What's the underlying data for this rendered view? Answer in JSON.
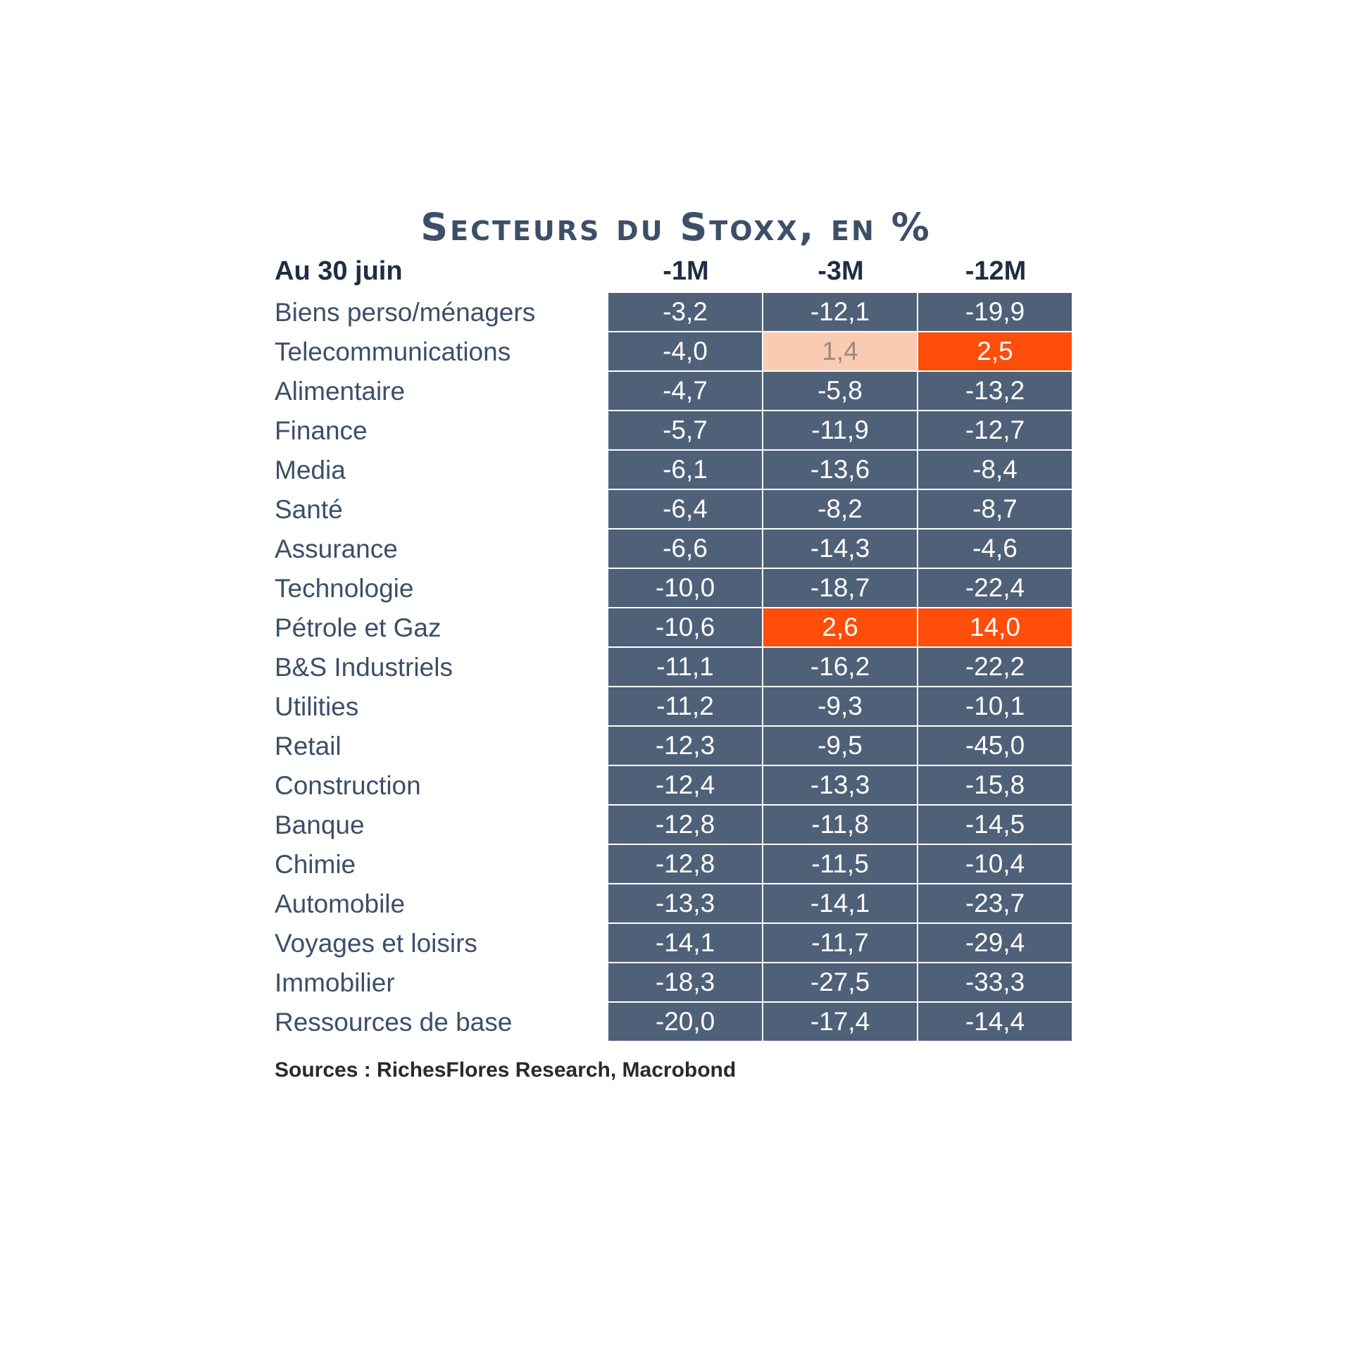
{
  "chart_data": {
    "type": "table",
    "title": "Secteurs du Stoxx, en %",
    "header_label": "Au 30 juin",
    "columns": [
      "-1M",
      "-3M",
      "-12M"
    ],
    "rows": [
      {
        "label": "Biens perso/ménagers",
        "values": [
          "-3,2",
          "-12,1",
          "-19,9"
        ],
        "highlight": [
          "",
          "",
          ""
        ]
      },
      {
        "label": "Telecommunications",
        "values": [
          "-4,0",
          "1,4",
          "2,5"
        ],
        "highlight": [
          "",
          "light",
          "strong"
        ]
      },
      {
        "label": "Alimentaire",
        "values": [
          "-4,7",
          "-5,8",
          "-13,2"
        ],
        "highlight": [
          "",
          "",
          ""
        ]
      },
      {
        "label": "Finance",
        "values": [
          "-5,7",
          "-11,9",
          "-12,7"
        ],
        "highlight": [
          "",
          "",
          ""
        ]
      },
      {
        "label": "Media",
        "values": [
          "-6,1",
          "-13,6",
          "-8,4"
        ],
        "highlight": [
          "",
          "",
          ""
        ]
      },
      {
        "label": "Santé",
        "values": [
          "-6,4",
          "-8,2",
          "-8,7"
        ],
        "highlight": [
          "",
          "",
          ""
        ]
      },
      {
        "label": "Assurance",
        "values": [
          "-6,6",
          "-14,3",
          "-4,6"
        ],
        "highlight": [
          "",
          "",
          ""
        ]
      },
      {
        "label": "Technologie",
        "values": [
          "-10,0",
          "-18,7",
          "-22,4"
        ],
        "highlight": [
          "",
          "",
          ""
        ]
      },
      {
        "label": "Pétrole et Gaz",
        "values": [
          "-10,6",
          "2,6",
          "14,0"
        ],
        "highlight": [
          "",
          "strong",
          "strong"
        ]
      },
      {
        "label": "B&S Industriels",
        "values": [
          "-11,1",
          "-16,2",
          "-22,2"
        ],
        "highlight": [
          "",
          "",
          ""
        ]
      },
      {
        "label": "Utilities",
        "values": [
          "-11,2",
          "-9,3",
          "-10,1"
        ],
        "highlight": [
          "",
          "",
          ""
        ]
      },
      {
        "label": "Retail",
        "values": [
          "-12,3",
          "-9,5",
          "-45,0"
        ],
        "highlight": [
          "",
          "",
          ""
        ]
      },
      {
        "label": "Construction",
        "values": [
          "-12,4",
          "-13,3",
          "-15,8"
        ],
        "highlight": [
          "",
          "",
          ""
        ]
      },
      {
        "label": "Banque",
        "values": [
          "-12,8",
          "-11,8",
          "-14,5"
        ],
        "highlight": [
          "",
          "",
          ""
        ]
      },
      {
        "label": "Chimie",
        "values": [
          "-12,8",
          "-11,5",
          "-10,4"
        ],
        "highlight": [
          "",
          "",
          ""
        ]
      },
      {
        "label": "Automobile",
        "values": [
          "-13,3",
          "-14,1",
          "-23,7"
        ],
        "highlight": [
          "",
          "",
          ""
        ]
      },
      {
        "label": "Voyages et loisirs",
        "values": [
          "-14,1",
          "-11,7",
          "-29,4"
        ],
        "highlight": [
          "",
          "",
          ""
        ]
      },
      {
        "label": "Immobilier",
        "values": [
          "-18,3",
          "-27,5",
          "-33,3"
        ],
        "highlight": [
          "",
          "",
          ""
        ]
      },
      {
        "label": "Ressources de base",
        "values": [
          "-20,0",
          "-17,4",
          "-14,4"
        ],
        "highlight": [
          "",
          "",
          ""
        ]
      }
    ],
    "source": "Sources : RichesFlores Research, Macrobond",
    "colors": {
      "cell_background": "#4f6178",
      "highlight_strong": "#ff4d0a",
      "highlight_light": "#f9cbb3",
      "title": "#3d4f68"
    }
  }
}
